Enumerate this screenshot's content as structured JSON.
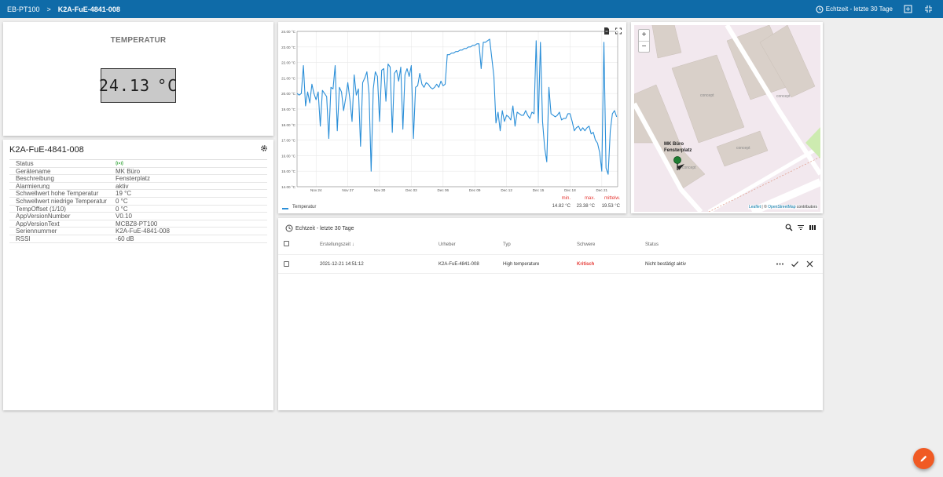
{
  "header": {
    "breadcrumb_root": "EB-PT100",
    "breadcrumb_sep": ">",
    "breadcrumb_current": "K2A-FuE-4841-008",
    "time_range": "Echtzeit - letzte 30 Tage",
    "icons": [
      "clock-icon",
      "fit-screen-icon",
      "fullscreen-exit-icon"
    ]
  },
  "temperature": {
    "title": "TEMPERATUR",
    "value": "24.13",
    "unit": "°C"
  },
  "device": {
    "title": "K2A-FuE-4841-008",
    "rows": [
      {
        "label": "Status",
        "value": ""
      },
      {
        "label": "Gerätename",
        "value": "MK Büro"
      },
      {
        "label": "Beschreibung",
        "value": "Fensterplatz"
      },
      {
        "label": "Alarmierung",
        "value": "aktiv"
      },
      {
        "label": "Schwellwert hohe Temperatur",
        "value": "19 °C"
      },
      {
        "label": "Schwellwert niedrige Temperatur",
        "value": "0 °C"
      },
      {
        "label": "TempOffset (1/10)",
        "value": "0 °C"
      },
      {
        "label": "AppVersionNumber",
        "value": "V0.10"
      },
      {
        "label": "AppVersionText",
        "value": "MCBZ8-PT100"
      },
      {
        "label": "Seriennummer",
        "value": "K2A-FuE-4841-008"
      },
      {
        "label": "RSSI",
        "value": "-60 dB"
      }
    ],
    "status_color": "#4caf50"
  },
  "chart_data": {
    "type": "line",
    "title": "",
    "xlabel": "",
    "ylabel": "",
    "ylim": [
      14,
      24
    ],
    "ytick_labels": [
      "14.00 °C",
      "15.00 °C",
      "16.00 °C",
      "17.00 °C",
      "18.00 °C",
      "19.00 °C",
      "20.00 °C",
      "21.00 °C",
      "22.00 °C",
      "23.00 °C",
      "24.00 °C"
    ],
    "xtick_labels": [
      "Nov 24",
      "Nov 27",
      "Nov 30",
      "Dec 03",
      "Dec 06",
      "Dec 09",
      "Dec 12",
      "Dec 15",
      "Dec 18",
      "Dec 21"
    ],
    "xtick_days": [
      0,
      3,
      6,
      9,
      12,
      15,
      18,
      21,
      24,
      27
    ],
    "xlim_days": [
      -1.8,
      28.5
    ],
    "grid": true,
    "color": "#2b8fd8",
    "series": [
      {
        "name": "Temperatur",
        "x": [
          -1.8,
          -1.6,
          -1.4,
          -1.2,
          -1.0,
          -0.8,
          -0.6,
          -0.4,
          -0.2,
          0,
          0.2,
          0.4,
          0.6,
          0.8,
          1.0,
          1.2,
          1.4,
          1.6,
          1.8,
          2.0,
          2.2,
          2.4,
          2.6,
          2.8,
          3.0,
          3.2,
          3.4,
          3.6,
          3.8,
          4.0,
          4.2,
          4.4,
          4.6,
          4.8,
          5.0,
          5.2,
          5.4,
          5.6,
          5.8,
          6.0,
          6.2,
          6.4,
          6.6,
          6.8,
          7.0,
          7.2,
          7.4,
          7.6,
          7.8,
          8.0,
          8.2,
          8.4,
          8.6,
          8.8,
          9.0,
          9.2,
          9.4,
          9.6,
          9.8,
          10.0,
          10.2,
          10.4,
          10.6,
          10.8,
          11.0,
          11.2,
          11.4,
          11.6,
          11.8,
          12.0,
          12.2,
          12.4,
          12.6,
          12.8,
          13.0,
          13.2,
          13.4,
          13.6,
          13.8,
          14.0,
          14.2,
          14.4,
          14.6,
          14.8,
          15.0,
          15.2,
          15.4,
          15.6,
          15.8,
          16.0,
          16.2,
          16.4,
          16.6,
          16.8,
          17.0,
          17.2,
          17.4,
          17.6,
          17.8,
          18.0,
          18.2,
          18.4,
          18.6,
          18.8,
          19.0,
          19.2,
          19.4,
          19.6,
          19.8,
          20.0,
          20.2,
          20.4,
          20.6,
          20.8,
          21.0,
          21.2,
          21.4,
          21.6,
          21.8,
          22.0,
          22.2,
          22.4,
          22.6,
          22.8,
          23.0,
          23.2,
          23.4,
          23.6,
          23.8,
          24.0,
          24.2,
          24.4,
          24.6,
          24.8,
          25.0,
          25.2,
          25.4,
          25.6,
          25.8,
          26.0,
          26.2,
          26.4,
          26.6,
          26.8,
          27.0,
          27.2,
          27.4,
          27.6,
          27.8,
          28.0,
          28.2,
          28.4
        ],
        "values": [
          20.0,
          19.9,
          20.0,
          21.8,
          19.2,
          20.1,
          19.4,
          20.6,
          20.0,
          19.6,
          20.1,
          17.9,
          20.2,
          20.0,
          19.8,
          17.1,
          20.4,
          20.3,
          21.8,
          17.6,
          20.4,
          20.1,
          18.9,
          19.7,
          20.7,
          19.6,
          18.2,
          21.2,
          19.9,
          20.3,
          16.6,
          20.7,
          21.0,
          21.4,
          20.0,
          15.0,
          20.3,
          21.4,
          21.1,
          18.2,
          21.5,
          21.6,
          19.5,
          21.9,
          21.7,
          17.5,
          21.3,
          21.5,
          20.8,
          21.7,
          17.7,
          21.2,
          21.6,
          21.1,
          21.8,
          17.1,
          20.4,
          20.5,
          21.3,
          20.6,
          20.4,
          20.7,
          20.6,
          20.4,
          20.3,
          20.4,
          20.6,
          20.4,
          20.8,
          20.5,
          20.6,
          22.5,
          22.5,
          22.6,
          22.6,
          22.7,
          22.7,
          22.8,
          22.8,
          22.9,
          22.9,
          23.0,
          23.0,
          23.1,
          23.1,
          23.2,
          23.2,
          21.6,
          23.3,
          23.3,
          23.4,
          23.5,
          22.3,
          21.1,
          18.1,
          18.8,
          17.6,
          18.9,
          18.2,
          18.6,
          18.5,
          18.3,
          19.2,
          17.9,
          18.8,
          18.7,
          18.6,
          18.6,
          18.9,
          18.6,
          18.4,
          18.8,
          18.7,
          23.4,
          18.1,
          23.3,
          18.2,
          16.5,
          15.6,
          20.4,
          18.7,
          18.6,
          18.5,
          18.6,
          18.8,
          18.3,
          18.4,
          18.4,
          18.7,
          18.7,
          18.2,
          17.6,
          17.8,
          17.9,
          17.6,
          17.8,
          17.6,
          17.8,
          17.9,
          17.4,
          17.5,
          17.0,
          16.8,
          16.2,
          15.0,
          23.3,
          15.2,
          14.8,
          17.6,
          18.7,
          18.9,
          18.5
        ]
      }
    ]
  },
  "chart_legend": {
    "series_name": "Temperatur"
  },
  "chart_stats": {
    "min_label": "min.",
    "min_value": "14.82 °C",
    "max_label": "max.",
    "max_value": "23.38 °C",
    "mean_label": "mittelw.",
    "mean_value": "19.53 °C"
  },
  "map": {
    "zoom_in": "+",
    "zoom_out": "−",
    "marker_title_line1": "MK Büro",
    "marker_title_line2": "Fensterplatz",
    "building_label": "concept",
    "attribution_link1": "Leaflet",
    "attribution_sep": " | © ",
    "attribution_link2": "OpenStreetMap",
    "attribution_tail": " contributors"
  },
  "alarms": {
    "header": "Echtzeit - letzte 30 Tage",
    "columns": {
      "created": "Erstellungszeit",
      "source": "Urheber",
      "type": "Typ",
      "severity": "Schwere",
      "status": "Status"
    },
    "rows": [
      {
        "created": "2021-12-21 14:51:12",
        "source": "K2A-FuE-4841-008",
        "type": "High temperature",
        "severity": "Kritisch",
        "status": "Nicht bestätigt aktiv"
      }
    ],
    "severity_color": "#e53935"
  },
  "fab_color": "#f05a24"
}
